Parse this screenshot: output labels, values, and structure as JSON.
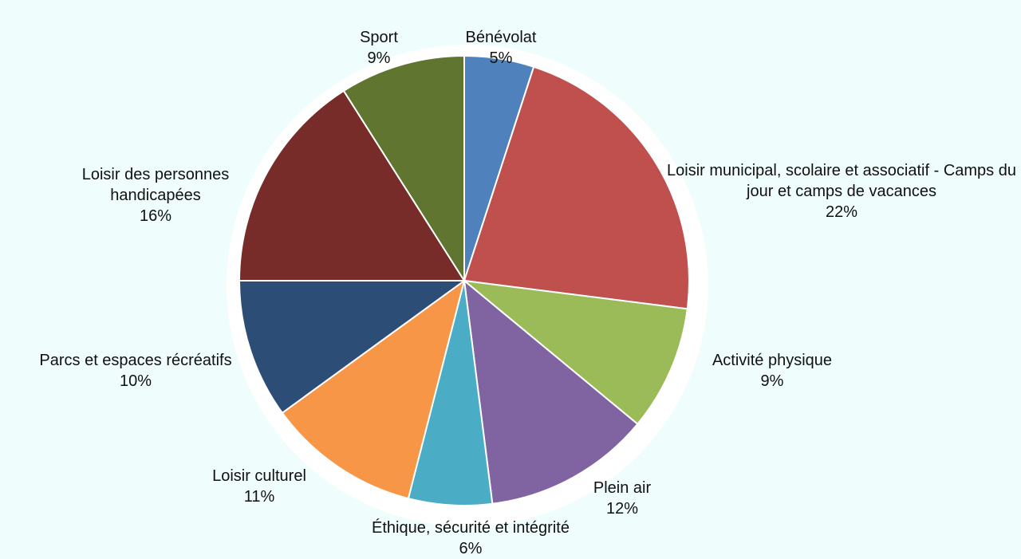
{
  "chart_data": {
    "type": "pie",
    "categories": [
      "Bénévolat",
      "Loisir municipal, scolaire et associatif - Camps du jour et camps de vacances",
      "Activité physique",
      "Plein air",
      "Éthique, sécurité et intégrité",
      "Loisir culturel",
      "Parcs et espaces récréatifs",
      "Loisir des personnes handicapées",
      "Sport"
    ],
    "values": [
      5,
      22,
      9,
      12,
      6,
      11,
      10,
      16,
      9
    ],
    "value_labels": [
      "5%",
      "22%",
      "9%",
      "12%",
      "6%",
      "11%",
      "10%",
      "16%",
      "9%"
    ],
    "colors": [
      "#4f81bd",
      "#c0504d",
      "#9bbb59",
      "#8064a2",
      "#4bacc6",
      "#f79646",
      "#2c4d75",
      "#772c2a",
      "#5f7530"
    ]
  }
}
